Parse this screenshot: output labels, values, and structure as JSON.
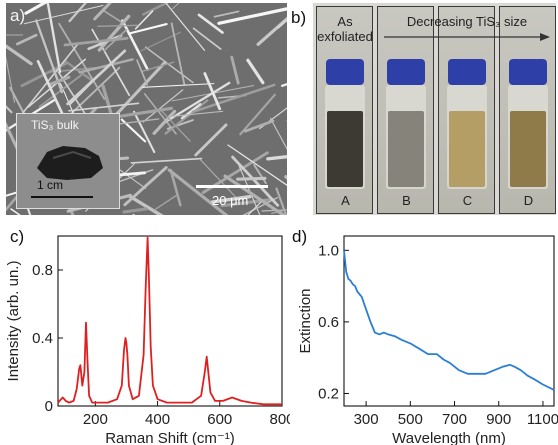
{
  "panel_a": {
    "label": "a)",
    "inset_label": "TiS₃ bulk",
    "inset_scale": "1 cm",
    "scale_bar": "20 μm"
  },
  "panel_b": {
    "label": "b)",
    "first_label": "As\nexfoliated",
    "arrow_label": "Decreasing TiS₃ size",
    "vials": [
      {
        "id": "A",
        "color": "#3c3a33"
      },
      {
        "id": "B",
        "color": "#85837a"
      },
      {
        "id": "C",
        "color": "#b59e66"
      },
      {
        "id": "D",
        "color": "#8f7a4a"
      }
    ],
    "cap_color": "#2f3fa8"
  },
  "chart_data": [
    {
      "panel": "c)",
      "type": "line",
      "color": "#e02020",
      "xlabel": "Raman Shift (cm⁻¹)",
      "ylabel": "Intensity (arb. un.)",
      "xlim": [
        80,
        800
      ],
      "ylim": [
        0,
        1.0
      ],
      "xticks": [
        200,
        400,
        600,
        800
      ],
      "xtick_labels": [
        "200",
        "400",
        "600",
        "800"
      ],
      "yticks": [
        0,
        0.4,
        0.8
      ],
      "ytick_labels": [
        "0",
        "0.4",
        "0.8"
      ],
      "x": [
        80,
        95,
        105,
        115,
        130,
        140,
        148,
        152,
        158,
        165,
        170,
        175,
        180,
        190,
        210,
        240,
        270,
        285,
        292,
        297,
        300,
        303,
        308,
        320,
        340,
        355,
        362,
        368,
        372,
        378,
        385,
        400,
        430,
        470,
        510,
        540,
        552,
        558,
        563,
        570,
        585,
        610,
        640,
        670,
        700,
        740,
        780,
        800
      ],
      "y": [
        0.02,
        0.05,
        0.03,
        0.02,
        0.03,
        0.1,
        0.22,
        0.24,
        0.12,
        0.2,
        0.49,
        0.25,
        0.06,
        0.02,
        0.02,
        0.02,
        0.04,
        0.12,
        0.33,
        0.4,
        0.37,
        0.3,
        0.12,
        0.04,
        0.06,
        0.3,
        0.7,
        0.99,
        0.78,
        0.35,
        0.12,
        0.04,
        0.02,
        0.02,
        0.02,
        0.06,
        0.2,
        0.29,
        0.2,
        0.08,
        0.03,
        0.03,
        0.05,
        0.03,
        0.02,
        0.01,
        0.01,
        0.01
      ]
    },
    {
      "panel": "d)",
      "type": "line",
      "color": "#2a7fd4",
      "xlabel": "Wavelength (nm)",
      "ylabel": "Extinction",
      "xlim": [
        200,
        1150
      ],
      "ylim": [
        0.13,
        1.08
      ],
      "xticks": [
        300,
        500,
        700,
        900,
        1100
      ],
      "xtick_labels": [
        "300",
        "500",
        "700",
        "900",
        "1100"
      ],
      "yticks": [
        0.2,
        0.6,
        1.0
      ],
      "ytick_labels": [
        "0.2",
        "0.6",
        "1.0"
      ],
      "x": [
        200,
        210,
        220,
        230,
        240,
        250,
        260,
        280,
        300,
        320,
        340,
        360,
        380,
        400,
        430,
        460,
        500,
        540,
        580,
        620,
        650,
        680,
        720,
        760,
        800,
        840,
        880,
        920,
        950,
        970,
        1000,
        1030,
        1060,
        1100,
        1150
      ],
      "y": [
        1.0,
        0.88,
        0.84,
        0.83,
        0.81,
        0.8,
        0.77,
        0.74,
        0.67,
        0.6,
        0.54,
        0.53,
        0.54,
        0.53,
        0.52,
        0.5,
        0.48,
        0.45,
        0.42,
        0.42,
        0.39,
        0.37,
        0.33,
        0.31,
        0.31,
        0.31,
        0.33,
        0.35,
        0.36,
        0.35,
        0.33,
        0.3,
        0.28,
        0.25,
        0.22
      ]
    }
  ]
}
